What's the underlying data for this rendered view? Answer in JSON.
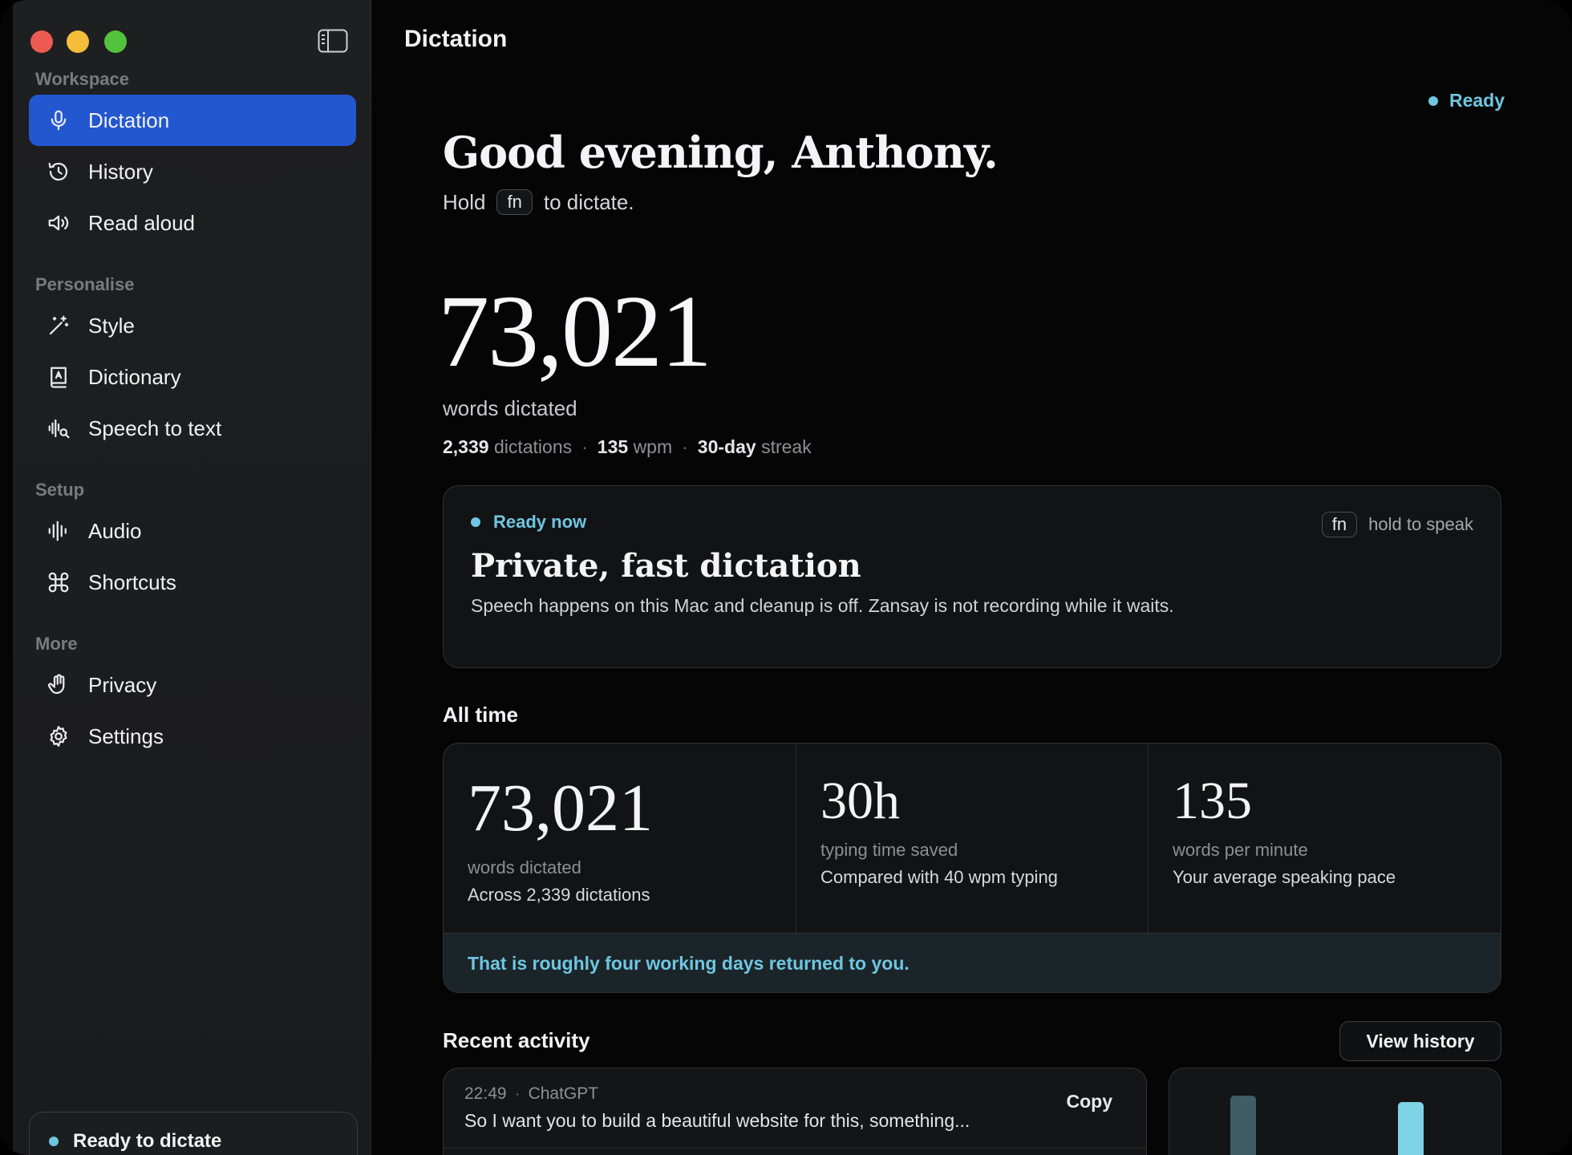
{
  "sidebar": {
    "sections": [
      {
        "label": "Workspace"
      },
      {
        "label": "Personalise"
      },
      {
        "label": "Setup"
      },
      {
        "label": "More"
      }
    ],
    "items": [
      {
        "label": "Dictation",
        "icon": "microphone-icon",
        "active": true
      },
      {
        "label": "History",
        "icon": "history-icon"
      },
      {
        "label": "Read aloud",
        "icon": "speaker-icon"
      },
      {
        "label": "Style",
        "icon": "magic-wand-icon"
      },
      {
        "label": "Dictionary",
        "icon": "dictionary-icon"
      },
      {
        "label": "Speech to text",
        "icon": "waveform-search-icon"
      },
      {
        "label": "Audio",
        "icon": "waveform-icon"
      },
      {
        "label": "Shortcuts",
        "icon": "command-icon"
      },
      {
        "label": "Privacy",
        "icon": "hand-icon"
      },
      {
        "label": "Settings",
        "icon": "gear-icon"
      }
    ],
    "status": "Ready to dictate"
  },
  "header": {
    "title": "Dictation",
    "status": "Ready"
  },
  "hero": {
    "greeting": "Good evening, Anthony.",
    "hold_prefix": "Hold",
    "hold_key": "fn",
    "hold_suffix": "to dictate.",
    "total_words": "73,021",
    "total_words_label": "words dictated",
    "dictations_value": "2,339",
    "dictations_label": "dictations",
    "wpm_value": "135",
    "wpm_label": "wpm",
    "streak_value": "30-day",
    "streak_label": "streak"
  },
  "ready_card": {
    "badge": "Ready now",
    "title": "Private, fast dictation",
    "description": "Speech happens on this Mac and cleanup is off. Zansay is not recording while it waits.",
    "hint_key": "fn",
    "hint_text": "hold to speak"
  },
  "all_time": {
    "heading": "All time",
    "stats": [
      {
        "value": "73,021",
        "label": "words dictated",
        "sub": "Across 2,339 dictations"
      },
      {
        "value": "30h",
        "label": "typing time saved",
        "sub": "Compared with 40 wpm typing"
      },
      {
        "value": "135",
        "label": "words per minute",
        "sub": "Your average speaking pace"
      }
    ],
    "footer": "That is roughly four working days returned to you."
  },
  "recent": {
    "heading": "Recent activity",
    "view_history": "View history",
    "items": [
      {
        "time": "22:49",
        "app": "ChatGPT",
        "text": "So I want you to build a beautiful website for this, something...",
        "copy": "Copy"
      }
    ]
  },
  "colors": {
    "accent": "#2257d0",
    "ready": "#6ec6e0",
    "bar_dark": "#3e5d67",
    "bar_light": "#7fd3e6"
  }
}
